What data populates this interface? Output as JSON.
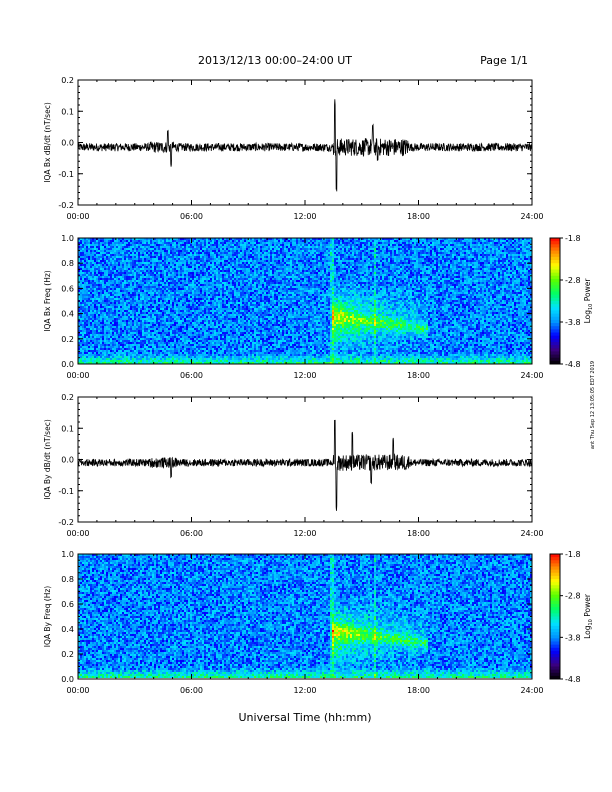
{
  "header": {
    "title": "2013/12/13   00:00–24:00 UT",
    "page": "Page 1/1"
  },
  "side_stamp": "ant Thu Sep 12 13:05:05 EDT 2019",
  "colors": {
    "trace": "#000000",
    "colormap": [
      "#000000",
      "#3b007f",
      "#0000ff",
      "#0095ff",
      "#00e3ff",
      "#00ff66",
      "#5aff00",
      "#ffff00",
      "#ff8c00",
      "#ff0000"
    ]
  },
  "chart_data": [
    {
      "type": "line",
      "ylabel": "IQA Bx dB/dt (nT/sec)",
      "xlabel": "",
      "xlim": [
        "00:00",
        "24:00"
      ],
      "x_ticks": [
        "00:00",
        "06:00",
        "12:00",
        "18:00",
        "24:00"
      ],
      "ylim": [
        -0.2,
        0.2
      ],
      "y_ticks": [
        "0.2",
        "0.1",
        "0.0",
        "-0.1",
        "-0.2"
      ],
      "baseline": -0.015,
      "noise_amplitude": 0.013,
      "events": [
        {
          "time": "04:45",
          "value": 0.04
        },
        {
          "time": "04:55",
          "value": -0.08
        },
        {
          "time": "13:35",
          "value": 0.14
        },
        {
          "time": "13:40",
          "value": -0.16
        },
        {
          "time": "15:35",
          "value": 0.06
        },
        {
          "time": "15:50",
          "value": -0.06
        }
      ]
    },
    {
      "type": "heatmap",
      "ylabel": "IQA Bx Freq (Hz)",
      "xlabel": "",
      "xlim": [
        "00:00",
        "24:00"
      ],
      "x_ticks": [
        "00:00",
        "06:00",
        "12:00",
        "18:00",
        "24:00"
      ],
      "ylim": [
        0.0,
        1.0
      ],
      "y_ticks": [
        "1.0",
        "0.8",
        "0.6",
        "0.4",
        "0.2",
        "0.0"
      ],
      "colorbar": {
        "label": "Log",
        "label_sub": "10",
        "label_rest": " Power",
        "range": [
          -4.8,
          -1.8
        ],
        "ticks": [
          "-1.8",
          "-2.8",
          "-3.8",
          "-4.8"
        ]
      }
    },
    {
      "type": "line",
      "ylabel": "IQA By dB/dt (nT/sec)",
      "xlabel": "",
      "xlim": [
        "00:00",
        "24:00"
      ],
      "x_ticks": [
        "00:00",
        "06:00",
        "12:00",
        "18:00",
        "24:00"
      ],
      "ylim": [
        -0.2,
        0.2
      ],
      "y_ticks": [
        "0.2",
        "0.1",
        "0.0",
        "-0.1",
        "-0.2"
      ],
      "baseline": -0.01,
      "noise_amplitude": 0.012,
      "events": [
        {
          "time": "04:55",
          "value": -0.06
        },
        {
          "time": "13:35",
          "value": 0.13
        },
        {
          "time": "13:40",
          "value": -0.17
        },
        {
          "time": "14:30",
          "value": 0.09
        },
        {
          "time": "15:30",
          "value": -0.08
        },
        {
          "time": "16:40",
          "value": 0.07
        }
      ]
    },
    {
      "type": "heatmap",
      "ylabel": "IQA By Freq (Hz)",
      "xlabel": "Universal Time (hh:mm)",
      "xlim": [
        "00:00",
        "24:00"
      ],
      "x_ticks": [
        "00:00",
        "06:00",
        "12:00",
        "18:00",
        "24:00"
      ],
      "ylim": [
        0.0,
        1.0
      ],
      "y_ticks": [
        "1.0",
        "0.8",
        "0.6",
        "0.4",
        "0.2",
        "0.0"
      ],
      "colorbar": {
        "label": "Log",
        "label_sub": "10",
        "label_rest": " Power",
        "range": [
          -4.8,
          -1.8
        ],
        "ticks": [
          "-1.8",
          "-2.8",
          "-3.8",
          "-4.8"
        ]
      }
    }
  ]
}
